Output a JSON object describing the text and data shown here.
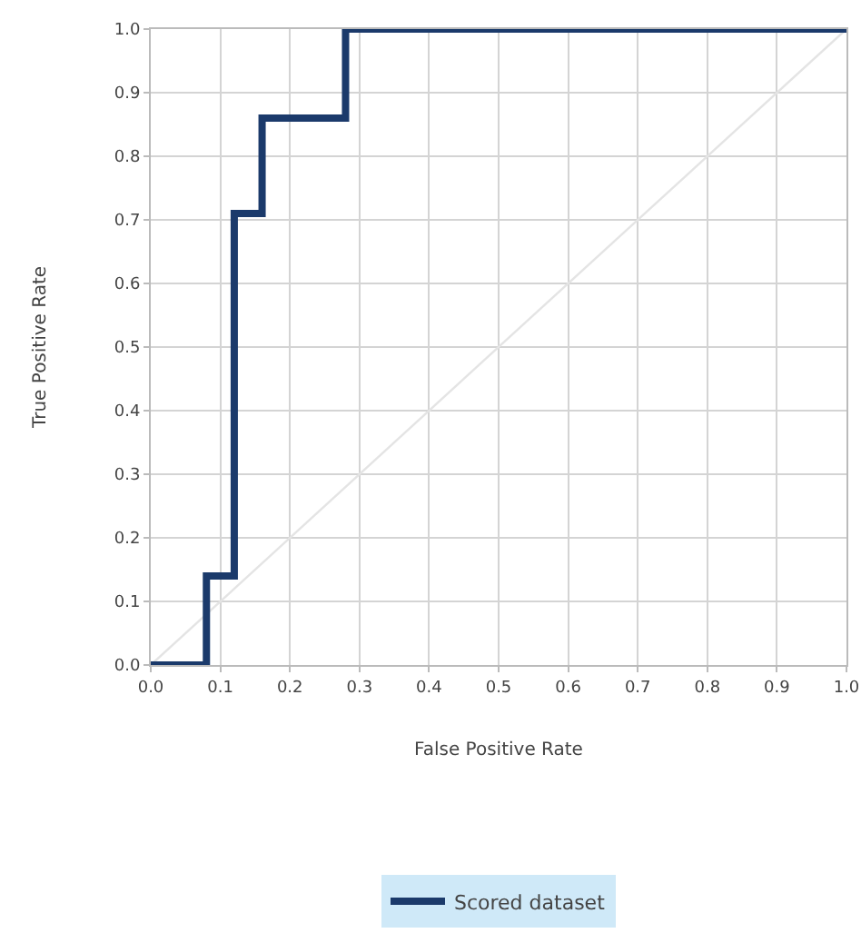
{
  "chart_data": {
    "type": "line",
    "xlabel": "False Positive Rate",
    "ylabel": "True Positive Rate",
    "series": [
      {
        "name": "Scored dataset",
        "color": "#1b3a6b",
        "x": [
          0,
          0.08,
          0.08,
          0.12,
          0.12,
          0.16,
          0.16,
          0.28,
          0.28,
          1.0
        ],
        "values": [
          0,
          0,
          0.14,
          0.14,
          0.71,
          0.71,
          0.86,
          0.86,
          1.0,
          1.0
        ]
      },
      {
        "color": "#e4e4e4",
        "x": [
          0,
          1
        ],
        "values": [
          0,
          1
        ]
      }
    ],
    "xlim": [
      0,
      1
    ],
    "ylim": [
      0,
      1
    ],
    "xticks": [
      {
        "value": 0,
        "label": "0.0"
      },
      0.1,
      0.2,
      0.3,
      0.4,
      0.5,
      0.6,
      0.7,
      0.8,
      0.9,
      {
        "value": 1,
        "label": "1.0"
      }
    ],
    "yticks": [
      {
        "value": 0,
        "label": "0.0"
      },
      0.1,
      0.2,
      0.3,
      0.4,
      0.5,
      0.6,
      0.7,
      0.8,
      0.9,
      {
        "value": 1,
        "label": "1.0"
      }
    ],
    "grid": true,
    "legend": "bottom",
    "marker": "none",
    "line_style": "solid"
  }
}
